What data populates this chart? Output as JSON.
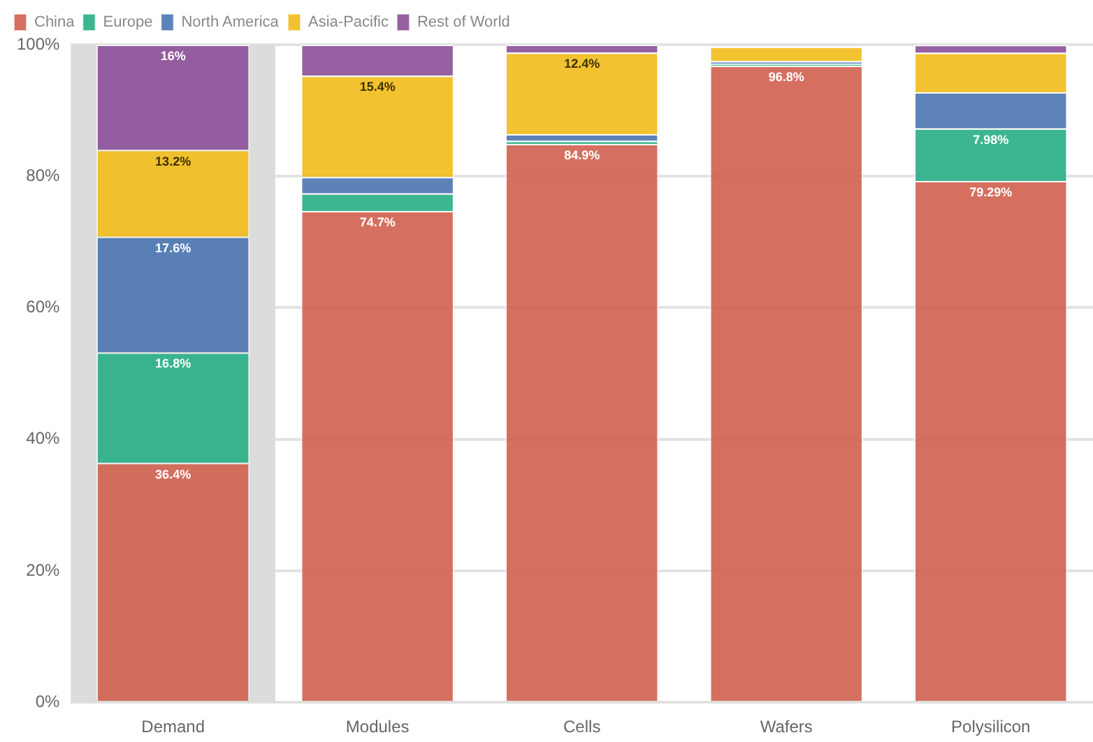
{
  "chart_data": {
    "type": "bar",
    "stacked": true,
    "categories": [
      "Demand",
      "Modules",
      "Cells",
      "Wafers",
      "Polysilicon"
    ],
    "series": [
      {
        "name": "China",
        "color": "#d0604f",
        "values": [
          36.4,
          74.7,
          84.9,
          96.8,
          79.29
        ],
        "value_labels": [
          "36.4%",
          "74.7%",
          "84.9%",
          "96.8%",
          "79.29%"
        ]
      },
      {
        "name": "Europe",
        "color": "#27ae84",
        "values": [
          16.8,
          2.7,
          0.5,
          0.3,
          7.98
        ],
        "value_labels": [
          "16.8%",
          null,
          null,
          null,
          "7.98%"
        ]
      },
      {
        "name": "North America",
        "color": "#4a74b0",
        "values": [
          17.6,
          2.5,
          1.0,
          0.4,
          5.5
        ],
        "value_labels": [
          "17.6%",
          null,
          null,
          null,
          null
        ]
      },
      {
        "name": "Asia-Pacific",
        "color": "#f2bb1a",
        "values": [
          13.2,
          15.4,
          12.4,
          2.2,
          6.0
        ],
        "value_labels": [
          "13.2%",
          "15.4%",
          "12.4%",
          null,
          null
        ]
      },
      {
        "name": "Rest of World",
        "color": "#8b4f98",
        "values": [
          16,
          4.7,
          1.2,
          null,
          1.2
        ],
        "value_labels": [
          "16%",
          null,
          null,
          null,
          null
        ]
      }
    ],
    "ylim": [
      0,
      100
    ],
    "yticks": [
      {
        "value": 0,
        "label": "0%"
      },
      {
        "value": 20,
        "label": "20%"
      },
      {
        "value": 40,
        "label": "40%"
      },
      {
        "value": 60,
        "label": "60%"
      },
      {
        "value": 80,
        "label": "80%"
      },
      {
        "value": 100,
        "label": "100%"
      }
    ],
    "bands": [
      {
        "axis": "x",
        "from": "Demand",
        "to": "Demand",
        "color": "#dcdcdc"
      }
    ],
    "grid": "y",
    "legend": "top left"
  }
}
